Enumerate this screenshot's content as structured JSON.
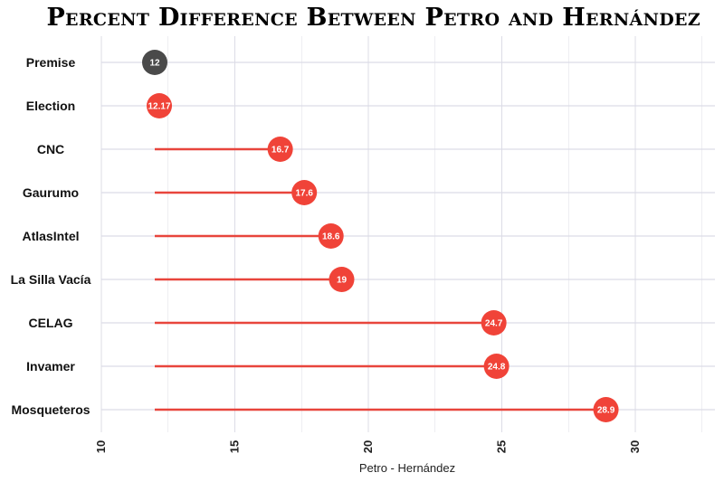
{
  "chart_data": {
    "type": "lollipop",
    "title": "Percent Difference Between Petro and Hernández",
    "xlabel": "Petro - Hernández",
    "ylabel": "",
    "xlim": [
      10,
      33
    ],
    "x_ticks": [
      "10",
      "15",
      "20",
      "25",
      "30"
    ],
    "baseline": 12,
    "grid": true,
    "colors": {
      "lines": "#e8453c",
      "points": "#f04338",
      "premise": "#4a4a4a",
      "grid": "#dcdce6"
    },
    "categories": [
      "Premise",
      "Election",
      "CNC",
      "Gaurumo",
      "AtlasIntel",
      "La Silla Vacía",
      "CELAG",
      "Invamer",
      "Mosqueteros"
    ],
    "values": [
      12,
      12.17,
      16.7,
      17.6,
      18.6,
      19,
      24.7,
      24.8,
      28.9
    ],
    "value_labels": [
      "12",
      "12.17",
      "16.7",
      "17.6",
      "18.6",
      "19",
      "24.7",
      "24.8",
      "28.9"
    ]
  }
}
